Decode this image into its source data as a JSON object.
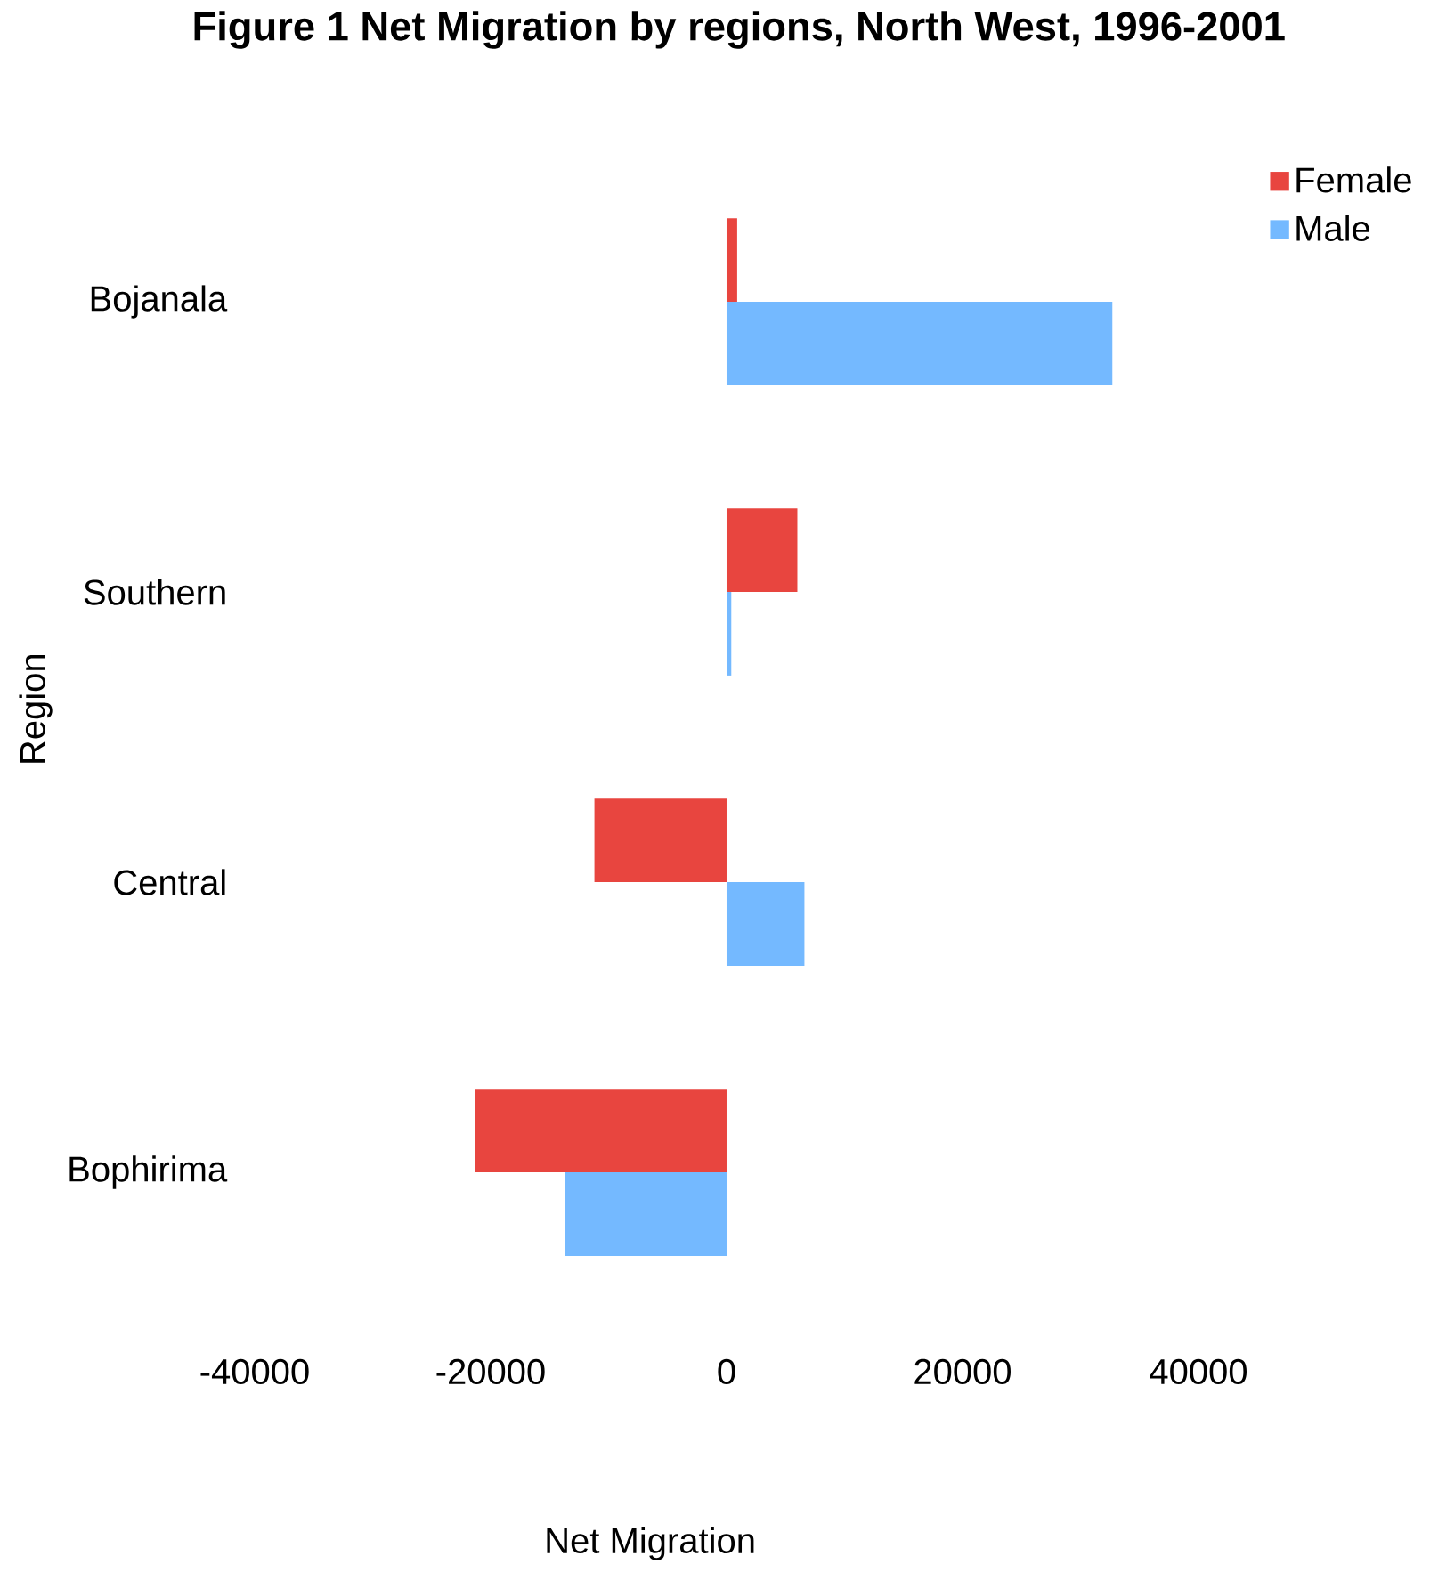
{
  "chart_data": {
    "type": "bar",
    "orientation": "horizontal",
    "title": "Figure 1 Net Migration by regions, North West, 1996-2001",
    "xlabel": "Net Migration",
    "ylabel": "Region",
    "categories": [
      "Bojanala",
      "Southern",
      "Central",
      "Bophirima"
    ],
    "series": [
      {
        "name": "Female",
        "color": "#e8453f",
        "values": [
          900,
          6000,
          -11200,
          -21300
        ]
      },
      {
        "name": "Male",
        "color": "#74b9ff",
        "values": [
          32700,
          400,
          6600,
          -13700
        ]
      }
    ],
    "xlim": [
      -40000,
      40000
    ],
    "xticks": [
      -40000,
      -20000,
      0,
      20000,
      40000
    ],
    "legend": "top right"
  }
}
